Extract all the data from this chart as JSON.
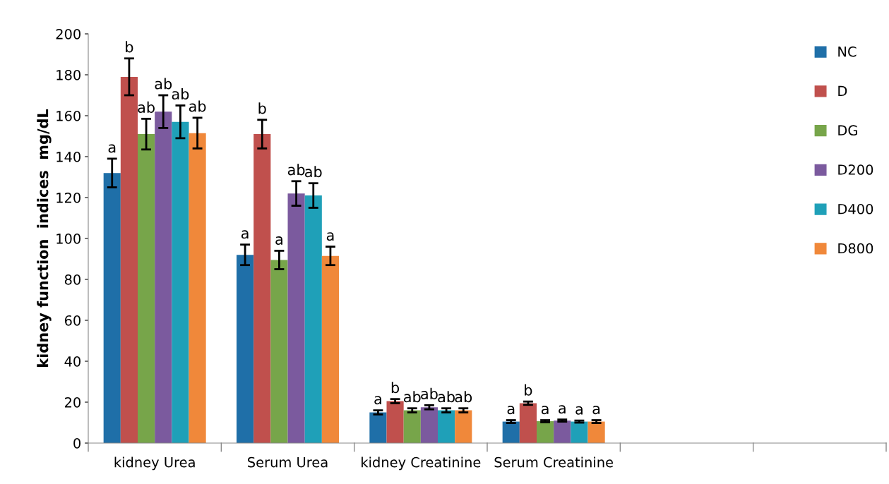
{
  "chart_data": {
    "type": "bar",
    "ylabel": "kidney function  indices  mg/dL",
    "categories": [
      "kidney Urea",
      "Serum Urea",
      "kidney Creatinine",
      "Serum Creatinine",
      null,
      null
    ],
    "series": [
      {
        "name": "NC",
        "color": "#1f6fa8",
        "values": [
          132,
          92,
          15,
          10.5,
          null,
          null
        ],
        "errors": [
          7,
          5,
          1,
          0.7,
          null,
          null
        ],
        "value_labels": [
          "a",
          "a",
          "a",
          "a",
          null,
          null
        ]
      },
      {
        "name": "D",
        "color": "#c0504d",
        "values": [
          179,
          151,
          20.5,
          19.5,
          null,
          null
        ],
        "errors": [
          9,
          7,
          1,
          0.8,
          null,
          null
        ],
        "value_labels": [
          "b",
          "b",
          "b",
          "b",
          null,
          null
        ]
      },
      {
        "name": "DG",
        "color": "#77a54a",
        "values": [
          151,
          89.5,
          16,
          10.7,
          null,
          null
        ],
        "errors": [
          7.5,
          4.5,
          1,
          0.5,
          null,
          null
        ],
        "value_labels": [
          "ab",
          "a",
          "ab",
          "a",
          null,
          null
        ]
      },
      {
        "name": "D200",
        "color": "#7b5a9e",
        "values": [
          162,
          122,
          17.5,
          11,
          null,
          null
        ],
        "errors": [
          8,
          6,
          1,
          0.5,
          null,
          null
        ],
        "value_labels": [
          "ab",
          "ab",
          "ab",
          "a",
          null,
          null
        ]
      },
      {
        "name": "D400",
        "color": "#1fa0b8",
        "values": [
          157,
          121,
          16,
          10.5,
          null,
          null
        ],
        "errors": [
          8,
          6,
          1,
          0.5,
          null,
          null
        ],
        "value_labels": [
          "ab",
          "ab",
          "ab",
          "a",
          null,
          null
        ]
      },
      {
        "name": "D800",
        "color": "#f0883a",
        "values": [
          151.5,
          91.5,
          16,
          10.5,
          null,
          null
        ],
        "errors": [
          7.5,
          4.5,
          1,
          0.7,
          null,
          null
        ],
        "value_labels": [
          "ab",
          "a",
          "ab",
          "a",
          null,
          null
        ]
      }
    ],
    "ylim": [
      0,
      200
    ],
    "yticks": [
      0,
      20,
      40,
      60,
      80,
      100,
      120,
      140,
      160,
      180,
      200
    ],
    "legend": "top right",
    "grid": false
  }
}
